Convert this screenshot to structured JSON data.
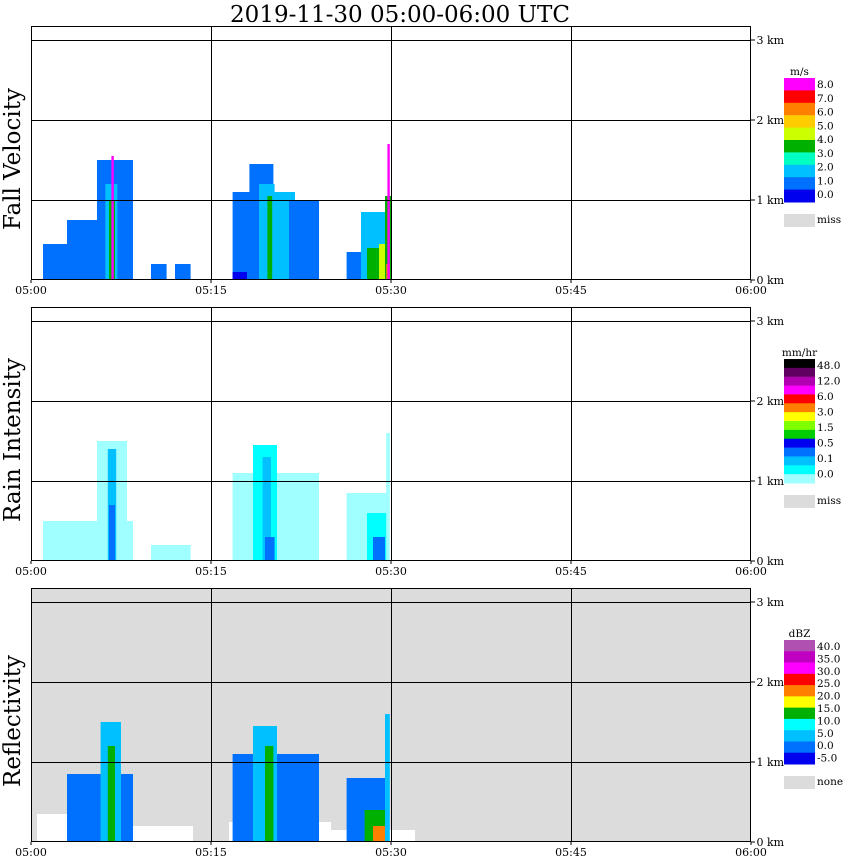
{
  "title": "2019-11-30   05:00-06:00 UTC",
  "colors": {
    "missing": "#dcdcdc",
    "grid": "#000000",
    "background": "#ffffff"
  },
  "chart_data": [
    {
      "type": "heatmap",
      "ylabel": "Fall Velocity",
      "unit": "m/s",
      "x_ticks": [
        "05:00",
        "05:15",
        "05:30",
        "05:45",
        "06:00"
      ],
      "y_ticks": [
        "0 km",
        "1 km",
        "2 km",
        "3 km"
      ],
      "xlim": [
        "05:00",
        "06:00"
      ],
      "ylim_km": [
        0,
        3.15
      ],
      "grid": true,
      "background": "#ffffff",
      "colorbar": {
        "labels": [
          "8.0",
          "7.0",
          "6.0",
          "5.0",
          "4.0",
          "3.0",
          "2.0",
          "1.0",
          "0.0"
        ],
        "colors": [
          "#ff00ff",
          "#ff0000",
          "#ff8000",
          "#ffcc00",
          "#ccff00",
          "#00b000",
          "#00ffc0",
          "#00c0ff",
          "#0070ff",
          "#0000ee"
        ],
        "miss_label": "miss"
      },
      "echoes": [
        {
          "start_min": 1.0,
          "end_min": 4.0,
          "top_km": 0.45,
          "color": "#0070ff"
        },
        {
          "start_min": 3.0,
          "end_min": 6.0,
          "top_km": 0.75,
          "color": "#0070ff"
        },
        {
          "start_min": 5.5,
          "end_min": 8.5,
          "top_km": 1.5,
          "color": "#0070ff"
        },
        {
          "start_min": 6.2,
          "end_min": 7.2,
          "top_km": 1.2,
          "color": "#00c0ff"
        },
        {
          "start_min": 6.5,
          "end_min": 7.0,
          "top_km": 1.0,
          "color": "#00b000"
        },
        {
          "start_min": 6.7,
          "end_min": 6.9,
          "top_km": 1.55,
          "color": "#ff00ff"
        },
        {
          "start_min": 10.0,
          "end_min": 11.3,
          "top_km": 0.2,
          "color": "#0070ff"
        },
        {
          "start_min": 12.0,
          "end_min": 13.3,
          "top_km": 0.2,
          "color": "#0070ff"
        },
        {
          "start_min": 16.8,
          "end_min": 18.6,
          "top_km": 1.1,
          "color": "#0070ff"
        },
        {
          "start_min": 18.2,
          "end_min": 20.2,
          "top_km": 1.45,
          "color": "#0070ff"
        },
        {
          "start_min": 19.0,
          "end_min": 20.3,
          "top_km": 1.2,
          "color": "#00c0ff"
        },
        {
          "start_min": 19.7,
          "end_min": 20.2,
          "top_km": 1.05,
          "color": "#00b000"
        },
        {
          "start_min": 20.1,
          "end_min": 22.0,
          "top_km": 1.1,
          "color": "#00c0ff"
        },
        {
          "start_min": 21.5,
          "end_min": 24.0,
          "top_km": 1.0,
          "color": "#0070ff"
        },
        {
          "start_min": 16.8,
          "end_min": 18.0,
          "top_km": 0.1,
          "color": "#0000ee"
        },
        {
          "start_min": 26.3,
          "end_min": 28.0,
          "top_km": 0.35,
          "color": "#0070ff"
        },
        {
          "start_min": 27.5,
          "end_min": 29.8,
          "top_km": 0.85,
          "color": "#00c0ff"
        },
        {
          "start_min": 28.0,
          "end_min": 29.7,
          "top_km": 0.4,
          "color": "#00b000"
        },
        {
          "start_min": 29.0,
          "end_min": 29.8,
          "top_km": 0.45,
          "color": "#ccff00"
        },
        {
          "start_min": 29.5,
          "end_min": 30.0,
          "top_km": 1.05,
          "color": "#00b000"
        },
        {
          "start_min": 29.6,
          "end_min": 29.9,
          "top_km": 0.2,
          "color": "#ff8000"
        },
        {
          "start_min": 29.7,
          "end_min": 29.9,
          "top_km": 1.7,
          "color": "#ff00ff"
        }
      ]
    },
    {
      "type": "heatmap",
      "ylabel": "Rain Intensity",
      "unit": "mm/hr",
      "x_ticks": [
        "05:00",
        "05:15",
        "05:30",
        "05:45",
        "06:00"
      ],
      "y_ticks": [
        "0 km",
        "1 km",
        "2 km",
        "3 km"
      ],
      "xlim": [
        "05:00",
        "06:00"
      ],
      "ylim_km": [
        0,
        3.15
      ],
      "grid": true,
      "background": "#ffffff",
      "colorbar": {
        "labels": [
          "48.0",
          "12.0",
          "6.0",
          "3.0",
          "1.5",
          "0.5",
          "0.1",
          "0.0"
        ],
        "colors": [
          "#000000",
          "#600060",
          "#b000b0",
          "#ff00ff",
          "#ff0000",
          "#ff8000",
          "#ffff00",
          "#80ff00",
          "#00cc00",
          "#0000ee",
          "#0070ff",
          "#00c0ff",
          "#00ffff",
          "#a0ffff"
        ],
        "miss_label": "miss"
      },
      "echoes": [
        {
          "start_min": 1.0,
          "end_min": 8.5,
          "top_km": 0.5,
          "color": "#a0ffff"
        },
        {
          "start_min": 5.5,
          "end_min": 8.0,
          "top_km": 1.5,
          "color": "#a0ffff"
        },
        {
          "start_min": 6.4,
          "end_min": 7.1,
          "top_km": 1.4,
          "color": "#00c0ff"
        },
        {
          "start_min": 6.5,
          "end_min": 7.0,
          "top_km": 0.7,
          "color": "#0070ff"
        },
        {
          "start_min": 10.0,
          "end_min": 13.3,
          "top_km": 0.2,
          "color": "#a0ffff"
        },
        {
          "start_min": 16.8,
          "end_min": 24.0,
          "top_km": 1.1,
          "color": "#a0ffff"
        },
        {
          "start_min": 18.5,
          "end_min": 20.5,
          "top_km": 1.45,
          "color": "#00ffff"
        },
        {
          "start_min": 19.3,
          "end_min": 20.0,
          "top_km": 1.3,
          "color": "#00c0ff"
        },
        {
          "start_min": 19.5,
          "end_min": 20.3,
          "top_km": 0.3,
          "color": "#0070ff"
        },
        {
          "start_min": 26.3,
          "end_min": 29.8,
          "top_km": 0.85,
          "color": "#a0ffff"
        },
        {
          "start_min": 28.0,
          "end_min": 29.7,
          "top_km": 0.6,
          "color": "#00ffff"
        },
        {
          "start_min": 28.5,
          "end_min": 29.5,
          "top_km": 0.3,
          "color": "#0070ff"
        },
        {
          "start_min": 29.6,
          "end_min": 29.9,
          "top_km": 1.6,
          "color": "#a0ffff"
        }
      ]
    },
    {
      "type": "heatmap",
      "ylabel": "Reflectivity",
      "unit": "dBZ",
      "x_ticks": [
        "05:00",
        "05:15",
        "05:30",
        "05:45",
        "06:00"
      ],
      "y_ticks": [
        "0 km",
        "1 km",
        "2 km",
        "3 km"
      ],
      "xlim": [
        "05:00",
        "06:00"
      ],
      "ylim_km": [
        0,
        3.15
      ],
      "grid": true,
      "background": "#dcdcdc",
      "colorbar": {
        "labels": [
          "40.0",
          "35.0",
          "30.0",
          "25.0",
          "20.0",
          "15.0",
          "10.0",
          "5.0",
          "0.0",
          "-5.0"
        ],
        "colors": [
          "#b050b0",
          "#c000c0",
          "#ff00ff",
          "#ff0000",
          "#ff8000",
          "#ffff00",
          "#00b000",
          "#00ffff",
          "#00c0ff",
          "#0070ff",
          "#0000ee"
        ],
        "miss_label": "none"
      },
      "echoes": [
        {
          "start_min": 0.5,
          "end_min": 4.5,
          "top_km": 0.35,
          "color": "#ffffff"
        },
        {
          "start_min": 4.5,
          "end_min": 13.5,
          "top_km": 0.2,
          "color": "#ffffff"
        },
        {
          "start_min": 16.5,
          "end_min": 25.0,
          "top_km": 0.25,
          "color": "#ffffff"
        },
        {
          "start_min": 25.0,
          "end_min": 32.0,
          "top_km": 0.15,
          "color": "#ffffff"
        },
        {
          "start_min": 3.0,
          "end_min": 8.5,
          "top_km": 0.85,
          "color": "#0070ff"
        },
        {
          "start_min": 5.8,
          "end_min": 7.5,
          "top_km": 1.5,
          "color": "#00c0ff"
        },
        {
          "start_min": 6.4,
          "end_min": 7.0,
          "top_km": 1.2,
          "color": "#00b000"
        },
        {
          "start_min": 16.8,
          "end_min": 24.0,
          "top_km": 1.1,
          "color": "#0070ff"
        },
        {
          "start_min": 18.5,
          "end_min": 20.5,
          "top_km": 1.45,
          "color": "#00c0ff"
        },
        {
          "start_min": 19.5,
          "end_min": 20.2,
          "top_km": 1.2,
          "color": "#00b000"
        },
        {
          "start_min": 26.3,
          "end_min": 29.8,
          "top_km": 0.8,
          "color": "#0070ff"
        },
        {
          "start_min": 27.8,
          "end_min": 29.7,
          "top_km": 0.4,
          "color": "#00b000"
        },
        {
          "start_min": 28.5,
          "end_min": 29.8,
          "top_km": 0.2,
          "color": "#ff8000"
        },
        {
          "start_min": 29.5,
          "end_min": 29.9,
          "top_km": 1.6,
          "color": "#00c0ff"
        }
      ]
    }
  ]
}
